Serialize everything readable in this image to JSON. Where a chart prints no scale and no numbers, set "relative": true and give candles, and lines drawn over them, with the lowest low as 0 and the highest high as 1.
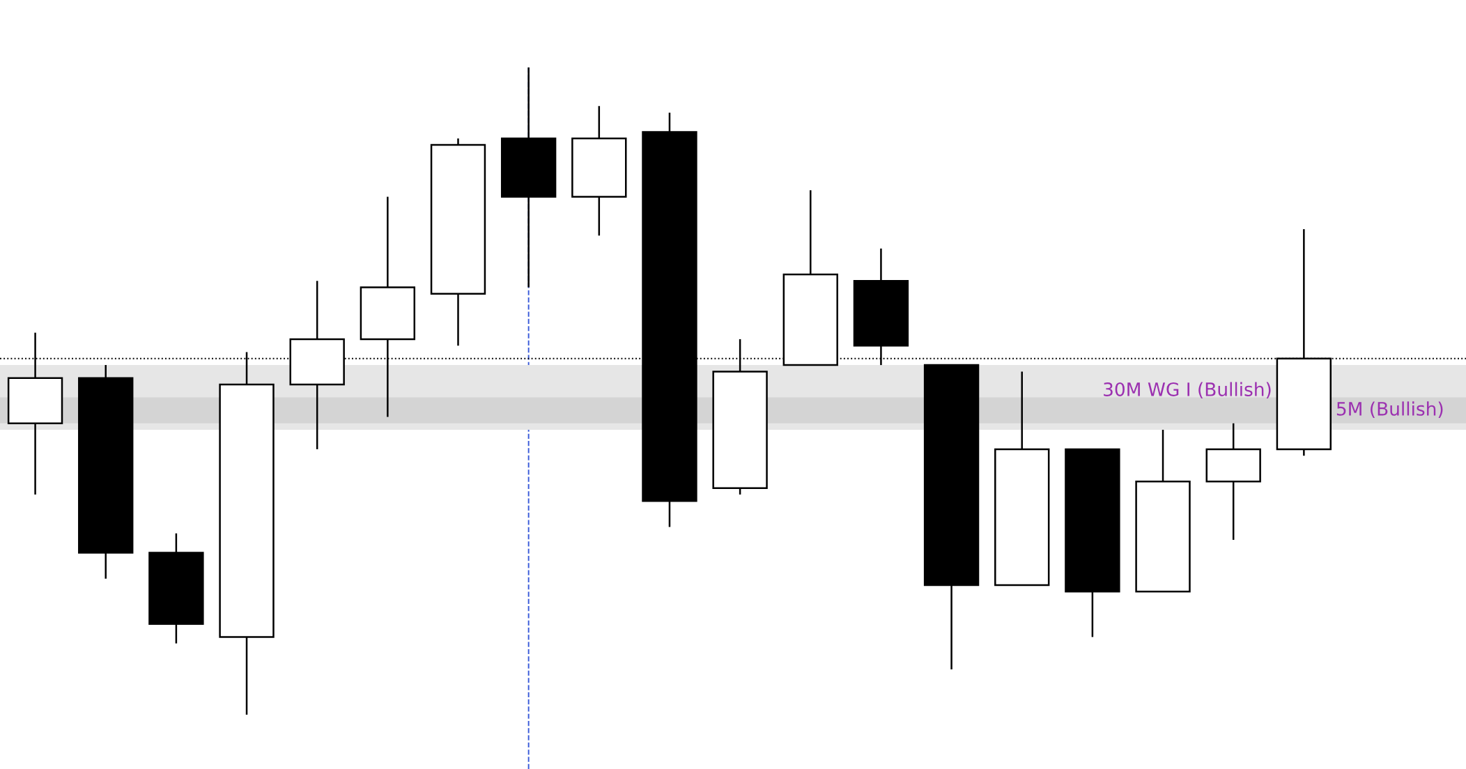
{
  "chart_data": {
    "type": "candlestick",
    "relative": true,
    "categories": [
      null,
      null,
      null,
      null,
      null,
      null,
      null,
      null,
      null,
      null,
      null,
      null,
      null,
      null,
      null,
      null,
      null,
      null,
      null
    ],
    "ohlc": [
      [
        0.45,
        0.59,
        0.34,
        0.52
      ],
      [
        0.52,
        0.54,
        0.21,
        0.25
      ],
      [
        0.25,
        0.28,
        0.11,
        0.14
      ],
      [
        0.12,
        0.56,
        0.0,
        0.51
      ],
      [
        0.51,
        0.67,
        0.41,
        0.58
      ],
      [
        0.58,
        0.8,
        0.46,
        0.66
      ],
      [
        0.65,
        0.89,
        0.57,
        0.88
      ],
      [
        0.89,
        1.0,
        0.66,
        0.8
      ],
      [
        0.8,
        0.94,
        0.74,
        0.89
      ],
      [
        0.9,
        0.93,
        0.29,
        0.33
      ],
      [
        0.35,
        0.58,
        0.34,
        0.53
      ],
      [
        0.54,
        0.81,
        0.54,
        0.68
      ],
      [
        0.67,
        0.72,
        0.54,
        0.57
      ],
      [
        0.54,
        0.54,
        0.07,
        0.2
      ],
      [
        0.2,
        0.53,
        0.2,
        0.41
      ],
      [
        0.41,
        0.41,
        0.12,
        0.19
      ],
      [
        0.19,
        0.44,
        0.19,
        0.36
      ],
      [
        0.36,
        0.45,
        0.27,
        0.41
      ],
      [
        0.41,
        0.75,
        0.4,
        0.55
      ]
    ],
    "ref_lines": [
      {
        "axis": "y",
        "value": 0.55,
        "color": "#000000",
        "line_style": "dotted"
      }
    ],
    "bands": [
      {
        "axis": "y",
        "from": 0.44,
        "to": 0.54,
        "label": "30M WG I (Bullish)",
        "color": "#e6e6e6"
      },
      {
        "axis": "y",
        "from": 0.45,
        "to": 0.49,
        "label": "5M (Bullish)",
        "color": "#d4d4d4"
      }
    ]
  }
}
